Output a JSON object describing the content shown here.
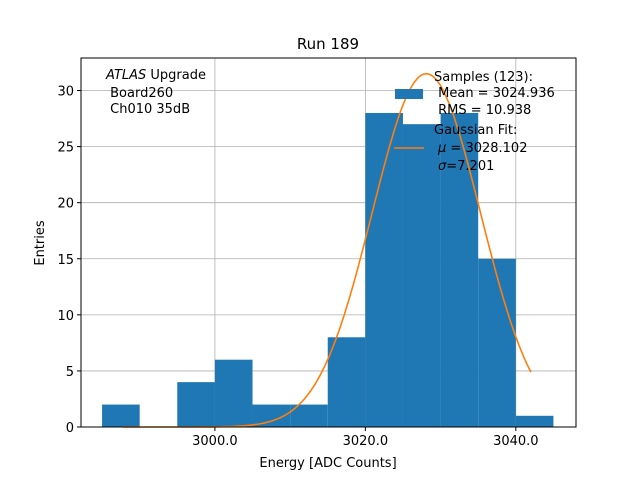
{
  "chart_data": {
    "type": "bar",
    "title": "Run 189",
    "xlabel": "Energy [ADC Counts]",
    "ylabel": "Entries",
    "xlim": [
      2982.2,
      3048
    ],
    "ylim": [
      0,
      32.9
    ],
    "grid": true,
    "bin_edges": [
      2985,
      2990,
      2995,
      3000,
      3005,
      3010,
      3015,
      3020,
      3025,
      3030,
      3035,
      3040,
      3045
    ],
    "values": [
      2,
      0,
      4,
      6,
      2,
      2,
      8,
      28,
      27,
      28,
      15,
      1
    ],
    "x_ticks": [
      3000,
      3020,
      3040
    ],
    "x_tick_labels": [
      "3000.0",
      "3020.0",
      "3040.0"
    ],
    "y_ticks": [
      0,
      5,
      10,
      15,
      20,
      25,
      30
    ],
    "y_tick_labels": [
      "0",
      "5",
      "10",
      "15",
      "20",
      "25",
      "30"
    ],
    "bar_color": "#1f77b4",
    "fit": {
      "type": "gaussian",
      "amplitude": 31.5,
      "mu": 3028.102,
      "sigma": 7.201,
      "x_range": [
        2987.7,
        3042
      ],
      "color": "#ff7f0e"
    },
    "annotation": {
      "italic": "ATLAS",
      "line1_rest": " Upgrade",
      "line2": " Board260",
      "line3": " Ch010 35dB"
    },
    "legend": {
      "placement": "top-right",
      "samples": [
        "Samples (123):",
        " Mean = 3024.936",
        " RMS = 10.938"
      ],
      "fit_title": "Gaussian Fit:",
      "fit_mu": " = 3028.102",
      "fit_sigma": "=7.201"
    }
  }
}
